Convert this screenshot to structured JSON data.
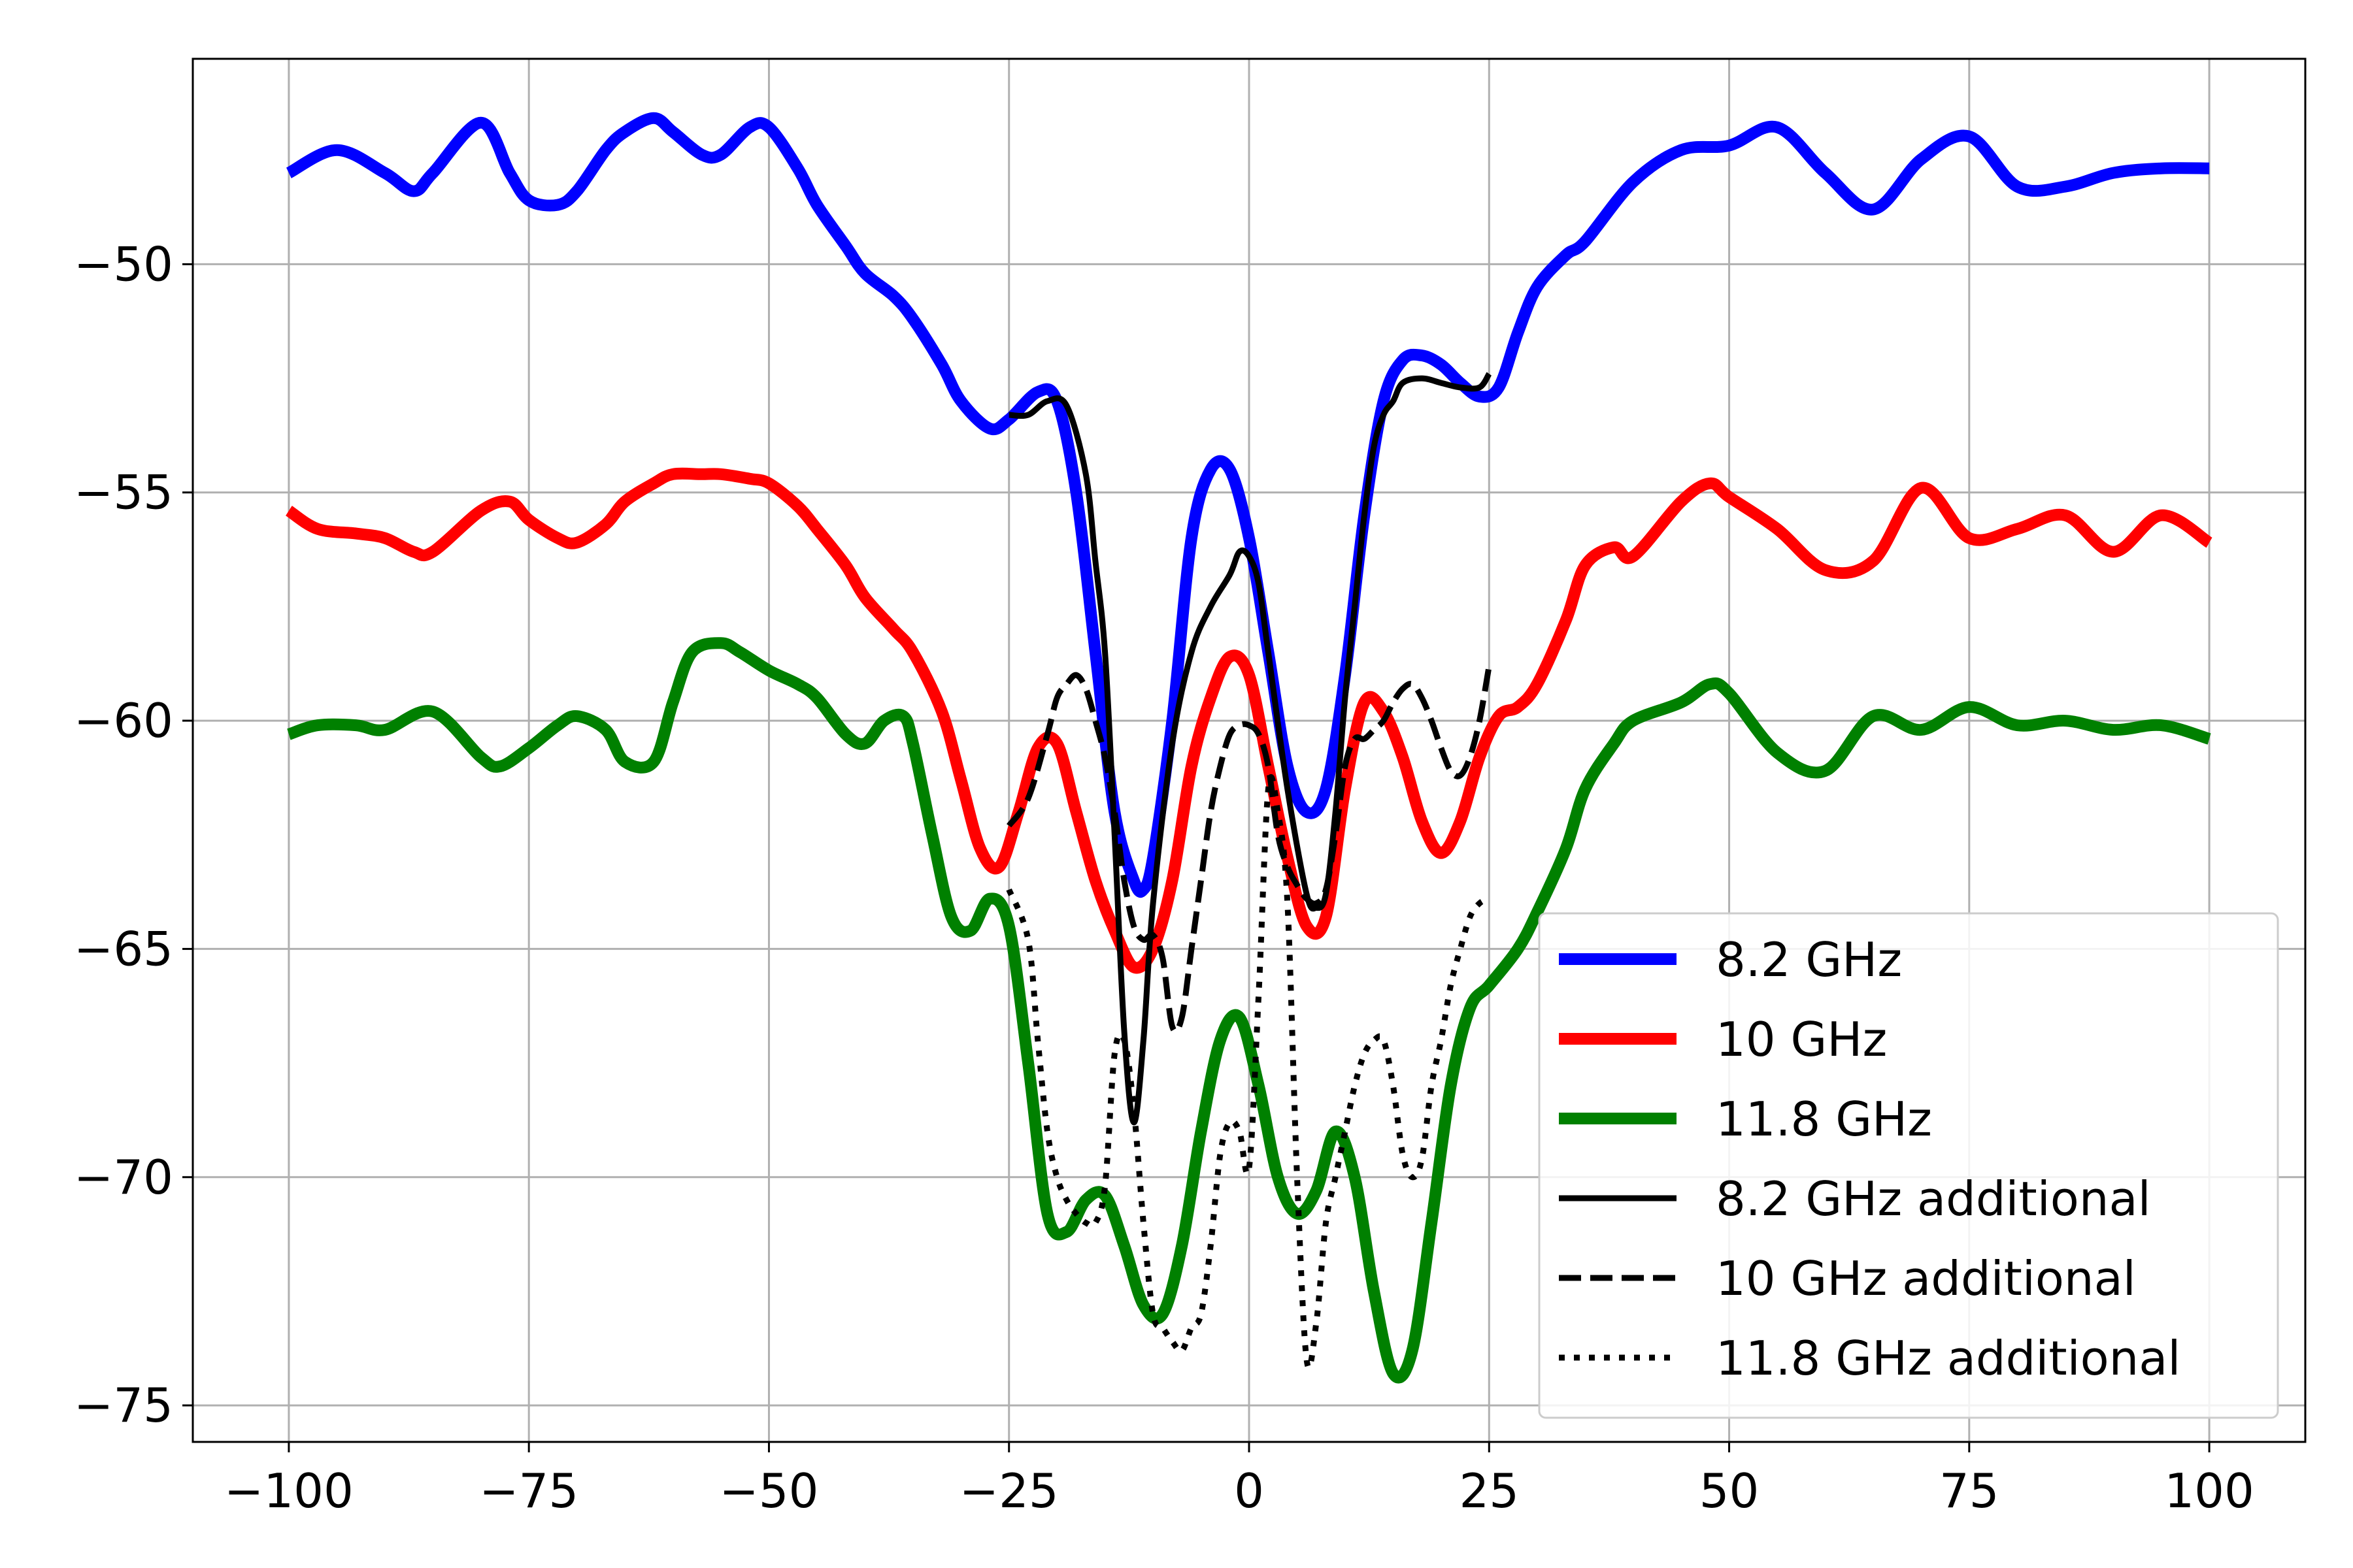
{
  "chart_data": {
    "type": "line",
    "title": "",
    "xlabel": "",
    "ylabel": "",
    "xlim": [
      -110,
      110
    ],
    "ylim": [
      -75.8,
      -45.5
    ],
    "grid": true,
    "legend_position": "lower-right",
    "x_ticks": [
      -100,
      -75,
      -50,
      -25,
      0,
      25,
      50,
      75,
      100
    ],
    "y_ticks": [
      -50,
      -55,
      -60,
      -65,
      -70,
      -75
    ],
    "x_tick_labels": [
      "−100",
      "−75",
      "−50",
      "−25",
      "0",
      "25",
      "50",
      "75",
      "100"
    ],
    "y_tick_labels": [
      "−50",
      "−55",
      "−60",
      "−65",
      "−70",
      "−75"
    ],
    "series": [
      {
        "name": "8.2 GHz",
        "color": "#0000ff",
        "style": "solid",
        "weight": "thick",
        "x": [
          -100,
          -95,
          -90,
          -87,
          -85,
          -80,
          -77,
          -75,
          -72,
          -70,
          -67,
          -65,
          -62,
          -60,
          -57,
          -55,
          -52,
          -50,
          -47,
          -45,
          -42,
          -40,
          -37,
          -35,
          -32,
          -30,
          -27,
          -25,
          -22,
          -20,
          -18,
          -16,
          -14,
          -12,
          -11,
          -10,
          -8,
          -6,
          -4,
          -2,
          0,
          2,
          4,
          6,
          8,
          10,
          12,
          14,
          16,
          18,
          20,
          22,
          24,
          26,
          28,
          30,
          33,
          35,
          40,
          45,
          50,
          55,
          60,
          65,
          70,
          75,
          80,
          85,
          90,
          95,
          100
        ],
        "y": [
          -48.0,
          -47.5,
          -48.0,
          -48.4,
          -48.0,
          -46.9,
          -48.0,
          -48.6,
          -48.7,
          -48.4,
          -47.5,
          -47.1,
          -46.8,
          -47.1,
          -47.6,
          -47.6,
          -47.0,
          -47.0,
          -47.9,
          -48.7,
          -49.6,
          -50.2,
          -50.7,
          -51.2,
          -52.2,
          -53.0,
          -53.6,
          -53.4,
          -52.8,
          -53.0,
          -55.0,
          -58.5,
          -62.0,
          -63.5,
          -63.7,
          -63.0,
          -60.0,
          -56.0,
          -54.5,
          -54.5,
          -56.0,
          -58.5,
          -61.0,
          -62.0,
          -61.5,
          -59.0,
          -55.5,
          -53.0,
          -52.1,
          -52.0,
          -52.2,
          -52.6,
          -52.9,
          -52.7,
          -51.5,
          -50.5,
          -49.8,
          -49.5,
          -48.2,
          -47.5,
          -47.4,
          -47.0,
          -48.0,
          -48.8,
          -47.7,
          -47.2,
          -48.3,
          -48.3,
          -48.0,
          -47.9,
          -47.9
        ]
      },
      {
        "name": "10 GHz",
        "color": "#ff0000",
        "style": "solid",
        "weight": "thick",
        "x": [
          -100,
          -97,
          -93,
          -90,
          -87,
          -85,
          -80,
          -77,
          -75,
          -72,
          -70,
          -67,
          -65,
          -62,
          -60,
          -57,
          -55,
          -52,
          -50,
          -47,
          -45,
          -42,
          -40,
          -37,
          -35,
          -32,
          -30,
          -28,
          -26,
          -24,
          -22,
          -20,
          -18,
          -16,
          -14,
          -12,
          -10,
          -8,
          -6,
          -4,
          -2,
          0,
          2,
          4,
          6,
          8,
          10,
          12,
          14,
          16,
          18,
          20,
          22,
          24,
          26,
          28,
          30,
          33,
          35,
          38,
          40,
          45,
          48,
          50,
          55,
          60,
          65,
          70,
          75,
          80,
          85,
          90,
          95,
          100
        ],
        "y": [
          -55.4,
          -55.8,
          -55.9,
          -56.0,
          -56.3,
          -56.3,
          -55.4,
          -55.2,
          -55.6,
          -56.0,
          -56.1,
          -55.7,
          -55.2,
          -54.8,
          -54.6,
          -54.6,
          -54.6,
          -54.7,
          -54.8,
          -55.3,
          -55.8,
          -56.6,
          -57.3,
          -58.0,
          -58.5,
          -59.8,
          -61.3,
          -62.8,
          -63.2,
          -62.0,
          -60.6,
          -60.5,
          -62.0,
          -63.5,
          -64.6,
          -65.4,
          -65.0,
          -63.5,
          -61.0,
          -59.5,
          -58.6,
          -59.0,
          -61.0,
          -63.0,
          -64.5,
          -64.3,
          -61.5,
          -59.6,
          -59.8,
          -60.8,
          -62.2,
          -62.9,
          -62.2,
          -60.8,
          -59.9,
          -59.7,
          -59.2,
          -57.8,
          -56.6,
          -56.2,
          -56.4,
          -55.2,
          -54.8,
          -55.1,
          -55.8,
          -56.7,
          -56.5,
          -54.9,
          -56.0,
          -55.8,
          -55.5,
          -56.3,
          -55.5,
          -56.1
        ]
      },
      {
        "name": "11.8 GHz",
        "color": "#008000",
        "style": "solid",
        "weight": "thick",
        "x": [
          -100,
          -97,
          -93,
          -90,
          -85,
          -80,
          -78,
          -75,
          -72,
          -70,
          -67,
          -65,
          -62,
          -60,
          -58,
          -55,
          -53,
          -50,
          -47,
          -45,
          -42,
          -40,
          -38,
          -36,
          -35,
          -33,
          -31,
          -29,
          -27,
          -25,
          -23,
          -21,
          -19,
          -17,
          -15,
          -13,
          -11,
          -9,
          -7,
          -5,
          -3,
          -1,
          1,
          3,
          5,
          7,
          9,
          11,
          13,
          15,
          17,
          19,
          21,
          23,
          25,
          28,
          30,
          33,
          35,
          38,
          40,
          45,
          48,
          50,
          55,
          60,
          65,
          70,
          75,
          80,
          85,
          90,
          95,
          100
        ],
        "y": [
          -60.3,
          -60.1,
          -60.1,
          -60.2,
          -59.8,
          -60.8,
          -61.0,
          -60.6,
          -60.1,
          -59.9,
          -60.2,
          -60.9,
          -60.9,
          -59.6,
          -58.5,
          -58.3,
          -58.5,
          -58.9,
          -59.2,
          -59.5,
          -60.3,
          -60.5,
          -60.0,
          -59.9,
          -60.5,
          -62.5,
          -64.3,
          -64.6,
          -63.9,
          -64.5,
          -67.5,
          -70.8,
          -71.2,
          -70.5,
          -70.4,
          -71.5,
          -72.8,
          -73.0,
          -71.5,
          -69.0,
          -67.0,
          -66.5,
          -68.0,
          -70.0,
          -70.8,
          -70.3,
          -69.0,
          -70.0,
          -72.5,
          -74.3,
          -73.8,
          -71.0,
          -68.0,
          -66.3,
          -65.8,
          -65.0,
          -64.2,
          -62.8,
          -61.5,
          -60.5,
          -60.0,
          -59.6,
          -59.2,
          -59.4,
          -60.7,
          -61.1,
          -59.9,
          -60.2,
          -59.7,
          -60.1,
          -60.0,
          -60.2,
          -60.1,
          -60.4
        ]
      },
      {
        "name": "8.2 GHz additional",
        "color": "#000000",
        "style": "solid",
        "weight": "thin",
        "x": [
          -25,
          -23,
          -21,
          -19,
          -17,
          -16,
          -15,
          -14,
          -13,
          -12,
          -11,
          -10,
          -8,
          -6,
          -4,
          -2,
          -1,
          0,
          1,
          2,
          4,
          6,
          7,
          8,
          9,
          10,
          11,
          12,
          13,
          14,
          15,
          16,
          18,
          20,
          22,
          24,
          25
        ],
        "y": [
          -53.3,
          -53.3,
          -53.0,
          -53.1,
          -54.6,
          -56.5,
          -58.5,
          -62.5,
          -66.8,
          -68.8,
          -67.0,
          -64.0,
          -60.5,
          -58.5,
          -57.5,
          -56.8,
          -56.3,
          -56.4,
          -57.0,
          -58.5,
          -61.5,
          -63.8,
          -64.1,
          -63.8,
          -62.0,
          -59.5,
          -57.5,
          -55.5,
          -54.0,
          -53.3,
          -53.0,
          -52.6,
          -52.5,
          -52.6,
          -52.7,
          -52.7,
          -52.4
        ]
      },
      {
        "name": "10 GHz additional",
        "color": "#000000",
        "style": "dashed",
        "weight": "thin",
        "x": [
          -25,
          -23,
          -21,
          -20,
          -19,
          -18,
          -17,
          -16,
          -15,
          -14,
          -13,
          -12,
          -11,
          -10,
          -9,
          -8,
          -7,
          -6,
          -5,
          -4,
          -3,
          -2,
          -1,
          0,
          1,
          2,
          3,
          4,
          5,
          6,
          7,
          8,
          9,
          10,
          11,
          12,
          13,
          14,
          15,
          16,
          17,
          18,
          19,
          20,
          21,
          22,
          23,
          24,
          25
        ],
        "y": [
          -62.3,
          -61.7,
          -60.3,
          -59.5,
          -59.2,
          -59.0,
          -59.3,
          -60.0,
          -60.8,
          -62.0,
          -63.5,
          -64.5,
          -64.8,
          -64.7,
          -65.2,
          -66.7,
          -66.5,
          -65.0,
          -63.5,
          -62.0,
          -61.0,
          -60.3,
          -60.1,
          -60.1,
          -60.3,
          -61.0,
          -62.5,
          -63.2,
          -63.6,
          -63.9,
          -64.0,
          -63.7,
          -62.5,
          -61.0,
          -60.4,
          -60.4,
          -60.2,
          -60.0,
          -59.6,
          -59.3,
          -59.2,
          -59.5,
          -60.0,
          -60.6,
          -61.1,
          -61.2,
          -60.8,
          -60.0,
          -58.8
        ]
      },
      {
        "name": "11.8 GHz additional",
        "color": "#000000",
        "style": "dotted",
        "weight": "thin",
        "x": [
          -25,
          -23,
          -22,
          -21,
          -20,
          -19,
          -18,
          -17,
          -16,
          -15,
          -14,
          -13,
          -12,
          -11,
          -10,
          -9,
          -8,
          -7,
          -6,
          -5,
          -4,
          -3,
          -2,
          -1,
          0,
          1,
          2,
          3,
          4,
          5,
          6,
          7,
          8,
          9,
          10,
          11,
          12,
          13,
          14,
          15,
          16,
          17,
          18,
          19,
          20,
          21,
          22,
          23,
          24,
          25
        ],
        "y": [
          -63.7,
          -64.8,
          -67.0,
          -69.0,
          -70.0,
          -70.5,
          -70.8,
          -71.0,
          -71.0,
          -70.2,
          -67.3,
          -67.0,
          -68.5,
          -71.0,
          -73.0,
          -73.3,
          -73.6,
          -73.8,
          -73.3,
          -73.0,
          -71.5,
          -69.5,
          -68.8,
          -69.0,
          -69.8,
          -66.0,
          -61.5,
          -62.0,
          -64.0,
          -70.0,
          -74.0,
          -73.2,
          -71.0,
          -70.0,
          -69.0,
          -68.0,
          -67.3,
          -67.0,
          -67.0,
          -68.0,
          -69.5,
          -70.0,
          -69.6,
          -68.0,
          -67.0,
          -65.8,
          -65.0,
          -64.3,
          -64.0,
          -63.9
        ]
      }
    ]
  }
}
